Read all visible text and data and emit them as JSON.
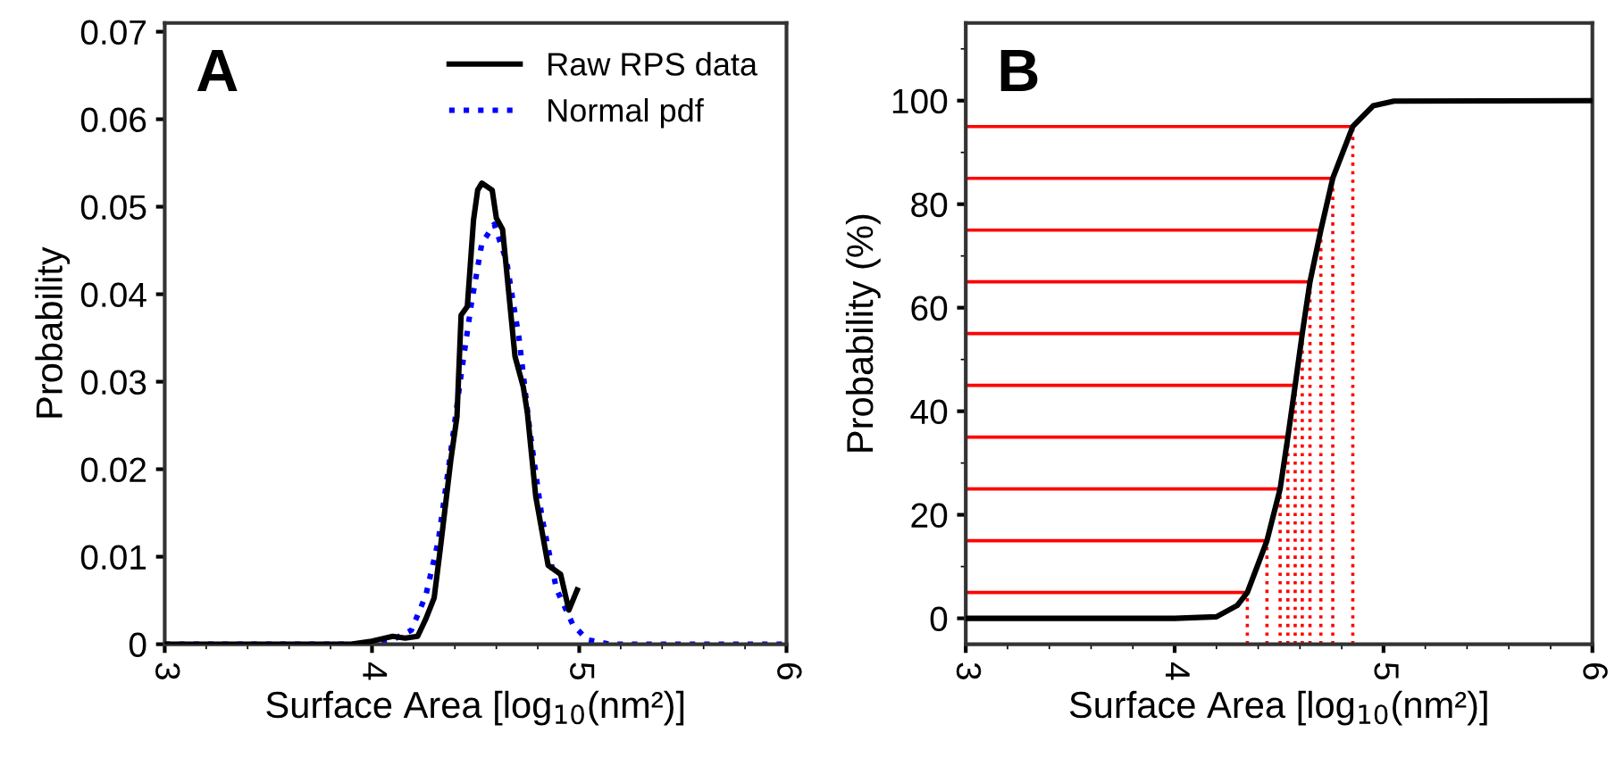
{
  "chart_data": [
    {
      "type": "line",
      "title": "A",
      "xlabel": "Surface Area [log$_{10}$(nm²)]",
      "ylabel": "Probability",
      "xlim": [
        3,
        6
      ],
      "xticks": [
        3,
        4,
        5,
        6
      ],
      "ylim": [
        0,
        0.071
      ],
      "yticks": [
        0,
        0.01,
        0.02,
        0.03,
        0.04,
        0.05,
        0.06,
        0.07
      ],
      "legend": "top right",
      "grid": false,
      "series": [
        {
          "name": "Raw RPS data",
          "color": "#000000",
          "line_style": "solid",
          "x": [
            3.0,
            3.9,
            3.99,
            4.1,
            4.16,
            4.22,
            4.26,
            4.3,
            4.33,
            4.38,
            4.41,
            4.43,
            4.46,
            4.49,
            4.51,
            4.53,
            4.58,
            4.6,
            4.63,
            4.69,
            4.73,
            4.75,
            4.79,
            4.85,
            4.91,
            4.95,
            4.99
          ],
          "values": [
            0,
            0,
            0.0003,
            0.0009,
            0.0007,
            0.0009,
            0.0029,
            0.0053,
            0.011,
            0.021,
            0.026,
            0.0376,
            0.0386,
            0.0485,
            0.0519,
            0.0527,
            0.0519,
            0.0487,
            0.0474,
            0.0329,
            0.0294,
            0.0264,
            0.0169,
            0.009,
            0.008,
            0.0039,
            0.0062
          ]
        },
        {
          "name": "Normal pdf",
          "color": "#0000ff",
          "line_style": "dotted",
          "x": [
            3.0,
            3.9,
            3.99,
            4.1,
            4.19,
            4.26,
            4.32,
            4.38,
            4.43,
            4.48,
            4.53,
            4.59,
            4.65,
            4.71,
            4.76,
            4.82,
            4.89,
            4.97,
            5.04,
            5.15,
            6.0
          ],
          "values": [
            0,
            0,
            0,
            0.0005,
            0.0016,
            0.0056,
            0.0118,
            0.022,
            0.0308,
            0.039,
            0.0458,
            0.048,
            0.0437,
            0.0349,
            0.0247,
            0.0145,
            0.0063,
            0.0022,
            0.0005,
            0,
            0
          ]
        }
      ]
    },
    {
      "type": "line",
      "title": "B",
      "xlabel": "Surface Area [log$_{10}$(nm²)]",
      "ylabel": "Probability (%)",
      "xlim": [
        3,
        6
      ],
      "xticks": [
        3,
        4,
        5,
        6
      ],
      "ylim": [
        -5,
        115
      ],
      "yticks": [
        0,
        20,
        40,
        60,
        80,
        100
      ],
      "legend": false,
      "grid": false,
      "series": [
        {
          "color": "#ff0000",
          "line_style": "solid",
          "x": [
            3,
            4.348
          ],
          "values": [
            5,
            5
          ]
        },
        {
          "color": "#ff0000",
          "line_style": "solid",
          "x": [
            3,
            4.442
          ],
          "values": [
            15,
            15
          ]
        },
        {
          "color": "#ff0000",
          "line_style": "solid",
          "x": [
            3,
            4.505
          ],
          "values": [
            25,
            25
          ]
        },
        {
          "color": "#ff0000",
          "line_style": "solid",
          "x": [
            3,
            4.542
          ],
          "values": [
            35,
            35
          ]
        },
        {
          "color": "#ff0000",
          "line_style": "solid",
          "x": [
            3,
            4.577
          ],
          "values": [
            45,
            45
          ]
        },
        {
          "color": "#ff0000",
          "line_style": "solid",
          "x": [
            3,
            4.611
          ],
          "values": [
            55,
            55
          ]
        },
        {
          "color": "#ff0000",
          "line_style": "solid",
          "x": [
            3,
            4.648
          ],
          "values": [
            65,
            65
          ]
        },
        {
          "color": "#ff0000",
          "line_style": "solid",
          "x": [
            3,
            4.7
          ],
          "values": [
            75,
            75
          ]
        },
        {
          "color": "#ff0000",
          "line_style": "solid",
          "x": [
            3,
            4.757
          ],
          "values": [
            85,
            85
          ]
        },
        {
          "color": "#ff0000",
          "line_style": "solid",
          "x": [
            3,
            4.853
          ],
          "values": [
            95,
            95
          ]
        },
        {
          "color": "#ff0000",
          "line_style": "dotted",
          "x": [
            4.348,
            4.348
          ],
          "values": [
            -5,
            5
          ]
        },
        {
          "color": "#ff0000",
          "line_style": "dotted",
          "x": [
            4.442,
            4.442
          ],
          "values": [
            -5,
            15
          ]
        },
        {
          "color": "#ff0000",
          "line_style": "dotted",
          "x": [
            4.505,
            4.505
          ],
          "values": [
            -5,
            25
          ]
        },
        {
          "color": "#ff0000",
          "line_style": "dotted",
          "x": [
            4.542,
            4.542
          ],
          "values": [
            -5,
            35
          ]
        },
        {
          "color": "#ff0000",
          "line_style": "dotted",
          "x": [
            4.577,
            4.577
          ],
          "values": [
            -5,
            45
          ]
        },
        {
          "color": "#ff0000",
          "line_style": "dotted",
          "x": [
            4.611,
            4.611
          ],
          "values": [
            -5,
            55
          ]
        },
        {
          "color": "#ff0000",
          "line_style": "dotted",
          "x": [
            4.648,
            4.648
          ],
          "values": [
            -5,
            65
          ]
        },
        {
          "color": "#ff0000",
          "line_style": "dotted",
          "x": [
            4.7,
            4.7
          ],
          "values": [
            -5,
            75
          ]
        },
        {
          "color": "#ff0000",
          "line_style": "dotted",
          "x": [
            4.757,
            4.757
          ],
          "values": [
            -5,
            85
          ]
        },
        {
          "color": "#ff0000",
          "line_style": "dotted",
          "x": [
            4.853,
            4.853
          ],
          "values": [
            -5,
            95
          ]
        },
        {
          "color": "#000000",
          "line_style": "solid",
          "x": [
            3.0,
            4.0,
            4.2,
            4.3,
            4.348,
            4.442,
            4.505,
            4.542,
            4.577,
            4.611,
            4.648,
            4.7,
            4.757,
            4.853,
            4.95,
            5.05,
            6.0
          ],
          "values": [
            0,
            0,
            0.3,
            2.5,
            5,
            15,
            25,
            35,
            45,
            55,
            65,
            75,
            85,
            95,
            99,
            99.9,
            100
          ]
        }
      ]
    }
  ]
}
